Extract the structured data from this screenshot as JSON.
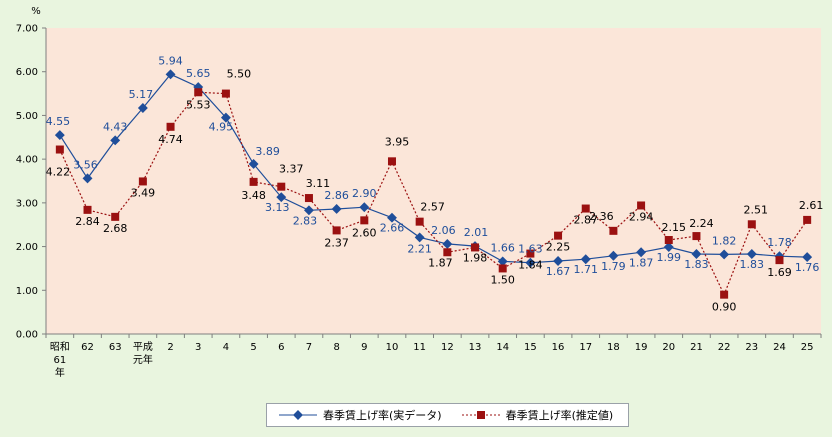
{
  "chart_data": {
    "type": "line",
    "unit": "%",
    "ylim": [
      0,
      7
    ],
    "yticks": [
      "0.00",
      "1.00",
      "2.00",
      "3.00",
      "4.00",
      "5.00",
      "6.00",
      "7.00"
    ],
    "categories": [
      "昭和61年",
      "62",
      "63",
      "平成元年",
      "2",
      "3",
      "4",
      "5",
      "6",
      "7",
      "8",
      "9",
      "10",
      "11",
      "12",
      "13",
      "14",
      "15",
      "16",
      "17",
      "18",
      "19",
      "20",
      "21",
      "22",
      "23",
      "24",
      "25"
    ],
    "category_lines": [
      [
        "昭和",
        "61",
        "年"
      ],
      [
        "62"
      ],
      [
        "63"
      ],
      [
        "平成",
        "元年"
      ],
      [
        "2"
      ],
      [
        "3"
      ],
      [
        "4"
      ],
      [
        "5"
      ],
      [
        "6"
      ],
      [
        "7"
      ],
      [
        "8"
      ],
      [
        "9"
      ],
      [
        "10"
      ],
      [
        "11"
      ],
      [
        "12"
      ],
      [
        "13"
      ],
      [
        "14"
      ],
      [
        "15"
      ],
      [
        "16"
      ],
      [
        "17"
      ],
      [
        "18"
      ],
      [
        "19"
      ],
      [
        "20"
      ],
      [
        "21"
      ],
      [
        "22"
      ],
      [
        "23"
      ],
      [
        "24"
      ],
      [
        "25"
      ]
    ],
    "series": [
      {
        "name": "春季賃上げ率(実データ)",
        "color": "#1f4e9a",
        "marker": "diamond",
        "line": "solid",
        "values": [
          4.55,
          3.56,
          4.43,
          5.17,
          5.94,
          5.65,
          4.95,
          3.89,
          3.13,
          2.83,
          2.86,
          2.9,
          2.66,
          2.21,
          2.06,
          2.01,
          1.66,
          1.63,
          1.67,
          1.71,
          1.79,
          1.87,
          1.99,
          1.83,
          1.82,
          1.83,
          1.78,
          1.76
        ],
        "labels": [
          "4.55",
          "3.56",
          "4.43",
          "5.17",
          "5.94",
          "5.65",
          "4.95",
          "3.89",
          "3.13",
          "2.83",
          "2.86",
          "2.90",
          "2.66",
          "2.21",
          "2.06",
          "2.01",
          "1.66",
          "1.63",
          "1.67",
          "1.71",
          "1.79",
          "1.87",
          "1.99",
          "1.83",
          "1.82",
          "1.83",
          "1.78",
          "1.76"
        ]
      },
      {
        "name": "春季賃上げ率(推定値)",
        "color": "#9b1111",
        "marker": "square",
        "line": "dashed",
        "values": [
          4.22,
          2.84,
          2.68,
          3.49,
          4.74,
          5.53,
          5.5,
          3.48,
          3.37,
          3.11,
          2.37,
          2.6,
          3.95,
          2.57,
          1.87,
          1.98,
          1.5,
          1.84,
          2.25,
          2.87,
          2.36,
          2.94,
          2.15,
          2.24,
          0.9,
          2.51,
          1.69,
          2.61
        ],
        "labels": [
          "4.22",
          "2.84",
          "2.68",
          "3.49",
          "4.74",
          "5.53",
          "5.50",
          "3.48",
          "3.37",
          "3.11",
          "2.37",
          "2.60",
          "3.95",
          "2.57",
          "1.87",
          "1.98",
          "1.50",
          "1.84",
          "2.25",
          "2.87",
          "2.36",
          "2.94",
          "2.15",
          "2.24",
          "0.90",
          "2.51",
          "1.69",
          "2.61"
        ]
      }
    ],
    "colors": {
      "plot_background": "#fbe6d9",
      "page_background": "#e9f5df"
    },
    "legend_position": "bottom"
  }
}
